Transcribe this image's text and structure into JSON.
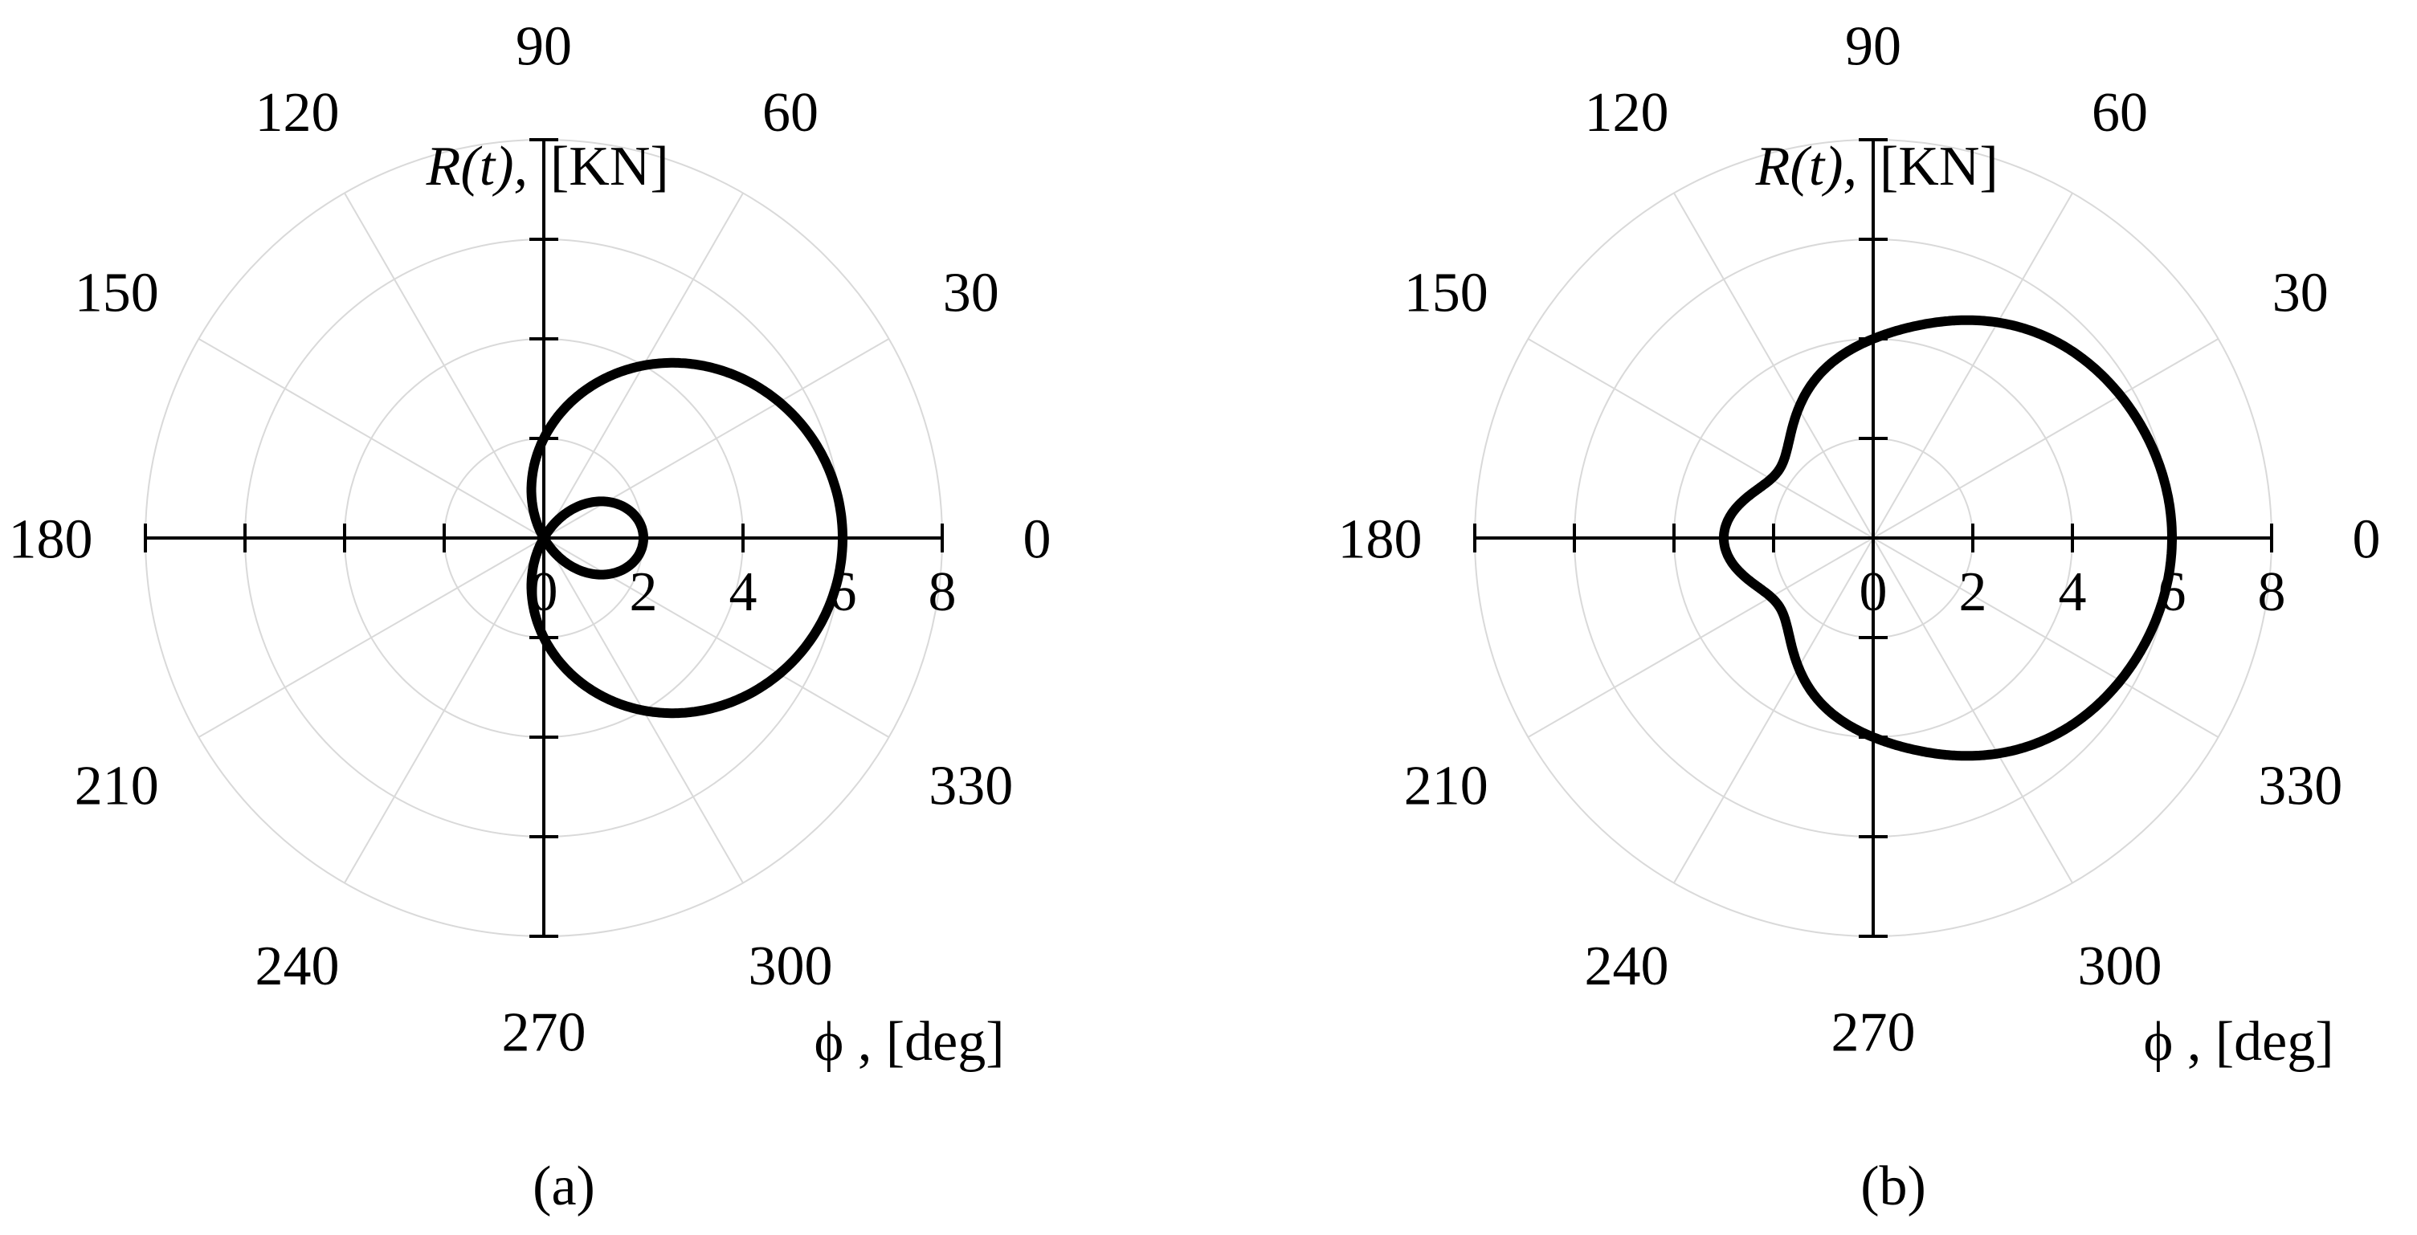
{
  "chart_data": [
    {
      "type": "polar-line",
      "panel_label": "(a)",
      "y_axis_label": "R(t),",
      "y_axis_unit": "[KN]",
      "x_axis_label": "ϕ , [deg]",
      "radial_range": [
        0,
        8
      ],
      "radial_ticks": [
        "0",
        "2",
        "4",
        "6",
        "8"
      ],
      "angle_ticks": [
        "0",
        "30",
        "60",
        "90",
        "120",
        "150",
        "180",
        "210",
        "240",
        "270",
        "300",
        "330"
      ],
      "grid": true,
      "line_color": "#000000",
      "series": [
        {
          "shape": "limacon with inner loop",
          "angle_deg": [
            0,
            30,
            60,
            90,
            120,
            150,
            180,
            210,
            240,
            270,
            300,
            330
          ],
          "r": [
            6,
            5.46,
            4.0,
            2.0,
            0.0,
            -1.46,
            -2.0,
            -1.46,
            0.0,
            2.0,
            4.0,
            5.46
          ]
        }
      ]
    },
    {
      "type": "polar-line",
      "panel_label": "(b)",
      "y_axis_label": "R(t),",
      "y_axis_unit": "[KN]",
      "x_axis_label": "ϕ , [deg]",
      "radial_range": [
        0,
        8
      ],
      "radial_ticks": [
        "0",
        "2",
        "4",
        "6",
        "8"
      ],
      "angle_ticks": [
        "0",
        "30",
        "60",
        "90",
        "120",
        "150",
        "180",
        "210",
        "240",
        "270",
        "300",
        "330"
      ],
      "grid": true,
      "line_color": "#000000",
      "series": [
        {
          "shape": "dimpled limacon",
          "angle_deg": [
            0,
            30,
            60,
            90,
            120,
            150,
            180,
            210,
            240,
            270,
            300,
            330
          ],
          "r": [
            6,
            5.73,
            5.0,
            4.0,
            3.0,
            2.37,
            3.0,
            2.37,
            3.0,
            4.0,
            5.0,
            5.73
          ]
        }
      ]
    }
  ]
}
